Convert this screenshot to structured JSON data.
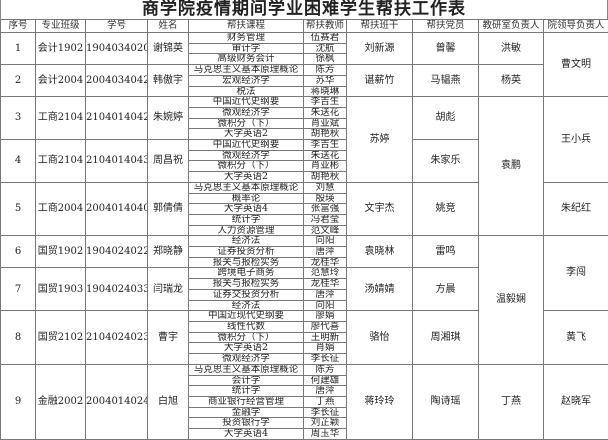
{
  "title": "商学院疫情期间学业困难学生帮扶工作表",
  "headers": [
    "序号",
    "专业班级",
    "学号",
    "姓名",
    "帮扶课程",
    "帮扶教师",
    "帮扶班干",
    "帮扶党员",
    "教研室负责人",
    "院领导负责人"
  ],
  "students": [
    {
      "no": "1",
      "class": "会计1902",
      "id": "19040340201",
      "name": "谢锦英",
      "courses": [
        [
          "财务管理",
          "伍赛君"
        ],
        [
          "审计学",
          "沈航"
        ],
        [
          "高级财务会计",
          "徐枫"
        ]
      ],
      "cadre": "刘新源",
      "member": "曾馨"
    },
    {
      "no": "2",
      "class": "会计2004",
      "id": "20040340426",
      "name": "韩傲宇",
      "courses": [
        [
          "马克思主义基本原理概论",
          "陈芳"
        ],
        [
          "宏观经济学",
          "苏华"
        ],
        [
          "税法",
          "蒋晓琳"
        ]
      ],
      "cadre": "谌薪竹",
      "member": "马韫燕"
    },
    {
      "no": "3",
      "class": "工商2104",
      "id": "21040140421",
      "name": "朱婉婷",
      "courses": [
        [
          "中国近代史纲要",
          "李吉生"
        ],
        [
          "微观经济学",
          "朱送花"
        ],
        [
          "微积分（下）",
          "肖亚斌"
        ],
        [
          "大学英语2",
          "胡艳秋"
        ]
      ],
      "cadre": "苏婷",
      "member": "胡彪"
    },
    {
      "no": "4",
      "class": "工商2104",
      "id": "21040140430",
      "name": "周昌祝",
      "courses": [
        [
          "中国近代史纲要",
          "李吉生"
        ],
        [
          "微观经济学",
          "朱送花"
        ],
        [
          "微积分（下）",
          "肖亚彬"
        ],
        [
          "大学英语2",
          "胡艳秋"
        ]
      ],
      "cadre": "",
      "member": "朱家乐"
    },
    {
      "no": "5",
      "class": "工商2004",
      "id": "20040140407",
      "name": "郭倩倩",
      "courses": [
        [
          "马克思主义基本原理概论",
          "刘慧"
        ],
        [
          "概率论",
          "殷瑛"
        ],
        [
          "大学英语4",
          "张富强"
        ],
        [
          "统计学",
          "冯君莹"
        ],
        [
          "人力资源管理",
          "范文峰"
        ]
      ],
      "cadre": "文宇杰",
      "member": "姚竞"
    },
    {
      "no": "6",
      "class": "国贸1902",
      "id": "19040240221",
      "name": "郑晓静",
      "courses": [
        [
          "经济法",
          "向阳"
        ],
        [
          "证券投资分析",
          "唐萍"
        ],
        [
          "报关与报检实务",
          "龙桂华"
        ]
      ],
      "cadre": "袁晓林",
      "member": "雷鸣"
    },
    {
      "no": "7",
      "class": "国贸1903",
      "id": "19040240339",
      "name": "闫瑞龙",
      "courses": [
        [
          "跨境电子商务",
          "范慧玲"
        ],
        [
          "报关与报检实务",
          "龙桂华"
        ],
        [
          "证券交投资分析",
          "唐萍"
        ],
        [
          "经济法",
          "向阳"
        ]
      ],
      "cadre": "汤婧婧",
      "member": "方晨"
    },
    {
      "no": "8",
      "class": "国贸2102",
      "id": "21040240237",
      "name": "曹宇",
      "courses": [
        [
          "中国近现代史纲要",
          "廖娟"
        ],
        [
          "线性代数",
          "廖代喜"
        ],
        [
          "微积分（下）",
          "王明新"
        ],
        [
          "大学英语2",
          "肖娟"
        ],
        [
          "微观经济学",
          "李长征"
        ]
      ],
      "cadre": "骆怡",
      "member": "周湘琪"
    },
    {
      "no": "9",
      "class": "金融2002",
      "id": "20040140240",
      "name": "白旭",
      "courses": [
        [
          "马克思主义基本原理概论",
          "陈芳"
        ],
        [
          "会计学",
          "何建雄"
        ],
        [
          "统计学",
          "唐萍"
        ],
        [
          "商业银行经营管理",
          "丁燕"
        ],
        [
          "金融学",
          "李长征"
        ],
        [
          "投资银行学",
          "刘芷颖"
        ],
        [
          "大学英语4",
          "周玉华"
        ]
      ],
      "cadre": "蒋玲玲",
      "member": "陶诗瑶"
    }
  ],
  "section_heads": [
    {
      "label": "洪敏",
      "from": 0,
      "span": 1
    },
    {
      "label": "杨英",
      "from": 1,
      "span": 1
    },
    {
      "label": "袁鹏",
      "from": 2,
      "span": 3
    },
    {
      "label": "温毅娴",
      "from": 5,
      "span": 3
    },
    {
      "label": "丁燕",
      "from": 8,
      "span": 1
    }
  ],
  "leaders": [
    {
      "label": "曹文明",
      "from": 0,
      "span": 2
    },
    {
      "label": "王小兵",
      "from": 2,
      "span": 2
    },
    {
      "label": "朱纪红",
      "from": 4,
      "span": 1
    },
    {
      "label": "李闯",
      "from": 5,
      "span": 2
    },
    {
      "label": "黄飞",
      "from": 7,
      "span": 1
    },
    {
      "label": "赵晓军",
      "from": 8,
      "span": 1
    }
  ],
  "cadre_merges": [
    {
      "from": 2,
      "span": 2
    }
  ]
}
